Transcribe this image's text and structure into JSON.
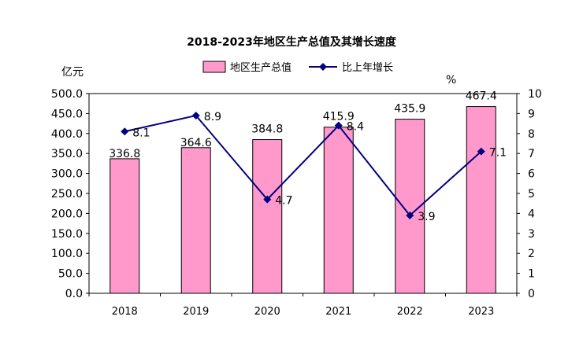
{
  "chart_data": {
    "type": "bar",
    "title": "2018-2023年地区生产总值及其增长速度",
    "categories": [
      "2018",
      "2019",
      "2020",
      "2021",
      "2022",
      "2023"
    ],
    "series": [
      {
        "name": "地区生产总值",
        "type": "bar",
        "axis": "left",
        "color": "#ff99cc",
        "values": [
          336.8,
          364.6,
          384.8,
          415.9,
          435.9,
          467.4
        ],
        "labels": [
          "336.8",
          "364.6",
          "384.8",
          "415.9",
          "435.9",
          "467.4"
        ]
      },
      {
        "name": "比上年增长",
        "type": "line",
        "axis": "right",
        "color": "#000080",
        "values": [
          8.1,
          8.9,
          4.7,
          8.4,
          3.9,
          7.1
        ],
        "labels": [
          "8.1",
          "8.9",
          "4.7",
          "8.4",
          "3.9",
          "7.1"
        ]
      }
    ],
    "ylabel_left": "亿元",
    "ylabel_right": "%",
    "ylim_left": [
      0,
      500
    ],
    "ylim_right": [
      0,
      10
    ],
    "yticks_left": [
      "0.0",
      "50.0",
      "100.0",
      "150.0",
      "200.0",
      "250.0",
      "300.0",
      "350.0",
      "400.0",
      "450.0",
      "500.0"
    ],
    "yticks_right": [
      "0",
      "1",
      "2",
      "3",
      "4",
      "5",
      "6",
      "7",
      "8",
      "9",
      "10"
    ],
    "legend": "top",
    "grid": false
  }
}
